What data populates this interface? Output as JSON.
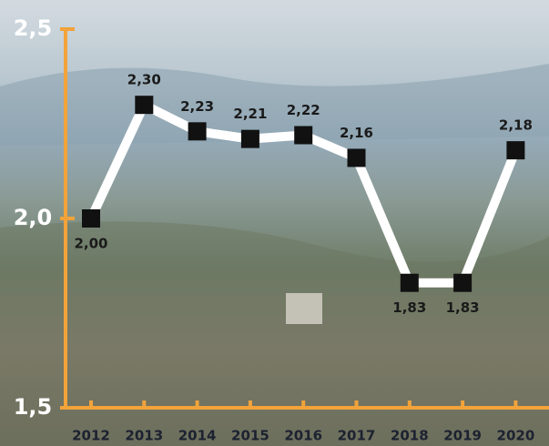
{
  "chart_data": {
    "type": "line",
    "categories": [
      "2012",
      "2013",
      "2014",
      "2015",
      "2016",
      "2017",
      "2018",
      "2019",
      "2020"
    ],
    "values": [
      2.0,
      2.3,
      2.23,
      2.21,
      2.22,
      2.16,
      1.83,
      1.83,
      2.18
    ],
    "value_labels": [
      "2,00",
      "2,30",
      "2,23",
      "2,21",
      "2,22",
      "2,16",
      "1,83",
      "1,83",
      "2,18"
    ],
    "color": "#ffffff",
    "marker_color": "#111111",
    "axis_color": "#f2a33a",
    "ylim": [
      1.5,
      2.5
    ],
    "yticks": [
      {
        "value": 1.5,
        "label": "1,5"
      },
      {
        "value": 2.0,
        "label": "2,0"
      },
      {
        "value": 2.5,
        "label": "2,5"
      }
    ]
  }
}
